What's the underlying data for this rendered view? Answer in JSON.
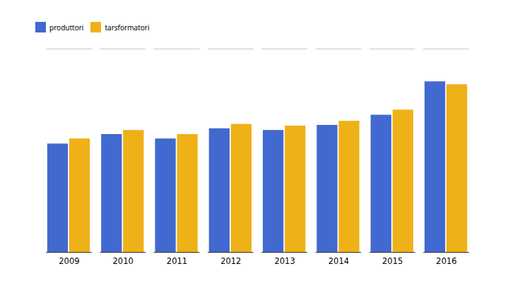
{
  "chart_data": {
    "type": "bar",
    "categories": [
      "2009",
      "2010",
      "2011",
      "2012",
      "2013",
      "2014",
      "2015",
      "2016"
    ],
    "series": [
      {
        "name": "produttori",
        "values": [
          3200,
          3480,
          3350,
          3650,
          3600,
          3750,
          4050,
          5034
        ]
      },
      {
        "name": "tarsformatori",
        "values": [
          3350,
          3600,
          3480,
          3780,
          3730,
          3870,
          4200,
          4950
        ]
      }
    ],
    "ylim": [
      0,
      6000
    ],
    "tick_labels": "x",
    "legend": "upper left"
  }
}
